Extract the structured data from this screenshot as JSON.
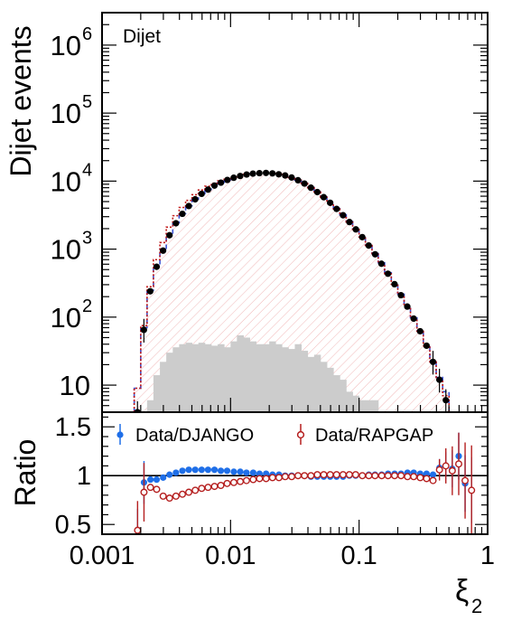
{
  "chart_data": [
    {
      "type": "step",
      "panel": "main",
      "label": "Dijet",
      "ylabel": "Dijet events",
      "yscale": "log",
      "ylim": [
        4,
        3000000
      ],
      "xscale": "log",
      "xlim": [
        0.001,
        1
      ],
      "ytick_labels": [
        {
          "base": "10",
          "exp": "6",
          "value": 1000000
        },
        {
          "base": "10",
          "exp": "5",
          "value": 100000
        },
        {
          "base": "10",
          "exp": "4",
          "value": 10000
        },
        {
          "base": "10",
          "exp": "3",
          "value": 1000
        },
        {
          "base": "10",
          "exp": "2",
          "value": 100
        },
        {
          "base": "10",
          "exp": "",
          "value": 10
        }
      ],
      "bin_edges": [
        0.00178,
        0.002,
        0.00224,
        0.00251,
        0.00282,
        0.00316,
        0.00355,
        0.00398,
        0.00447,
        0.00501,
        0.00562,
        0.00631,
        0.00708,
        0.00794,
        0.00891,
        0.01,
        0.0112,
        0.0126,
        0.0141,
        0.0158,
        0.0178,
        0.02,
        0.0224,
        0.0251,
        0.0282,
        0.0316,
        0.0355,
        0.0398,
        0.0447,
        0.0501,
        0.0562,
        0.0631,
        0.0708,
        0.0794,
        0.0891,
        0.1,
        0.112,
        0.126,
        0.141,
        0.158,
        0.178,
        0.2,
        0.224,
        0.251,
        0.282,
        0.316,
        0.355,
        0.398,
        0.447,
        0.501,
        0.562,
        0.631,
        0.708,
        0.794
      ],
      "series": [
        {
          "name": "",
          "role": "data",
          "style": "black-points",
          "values": [
            4,
            65,
            240,
            550,
            950,
            1600,
            2400,
            3300,
            4300,
            5400,
            6500,
            7500,
            8600,
            9500,
            10400,
            11200,
            11900,
            12500,
            12900,
            13100,
            13200,
            13000,
            12600,
            12100,
            11300,
            10300,
            9200,
            8000,
            6900,
            5800,
            4800,
            3900,
            3150,
            2500,
            1950,
            1500,
            1130,
            840,
            610,
            435,
            305,
            210,
            143,
            95,
            62,
            38,
            22,
            12,
            6
          ]
        },
        {
          "name": "",
          "role": "mc",
          "style": "blue-dashed-step",
          "values": [
            9,
            70,
            250,
            580,
            1000,
            1650,
            2450,
            3350,
            4350,
            5450,
            6550,
            7550,
            8650,
            9550,
            10450,
            11250,
            11950,
            12550,
            12950,
            13150,
            13250,
            13050,
            12650,
            12150,
            11350,
            10350,
            9250,
            8050,
            6950,
            5850,
            4850,
            3950,
            3200,
            2550,
            2000,
            1550,
            1160,
            860,
            630,
            450,
            315,
            218,
            148,
            98,
            64,
            40,
            23,
            13,
            8
          ]
        },
        {
          "name": "",
          "role": "mc",
          "style": "red-dotted-step",
          "values": [
            9,
            75,
            280,
            700,
            1250,
            2100,
            3100,
            4100,
            5200,
            6300,
            7400,
            8400,
            9300,
            10100,
            10900,
            11500,
            12100,
            12600,
            12900,
            13100,
            13200,
            13000,
            12600,
            12100,
            11300,
            10300,
            9200,
            8000,
            6900,
            5800,
            4800,
            3900,
            3150,
            2500,
            1950,
            1500,
            1130,
            840,
            610,
            435,
            305,
            210,
            143,
            95,
            62,
            38,
            22,
            12,
            7
          ]
        },
        {
          "name": "",
          "role": "background",
          "style": "grey-filled",
          "values": [
            0,
            0,
            6,
            14,
            22,
            30,
            36,
            40,
            42,
            40,
            42,
            40,
            38,
            40,
            36,
            44,
            54,
            50,
            44,
            40,
            40,
            44,
            40,
            36,
            34,
            40,
            32,
            26,
            28,
            22,
            18,
            14,
            12,
            8,
            7,
            6,
            6,
            6,
            0,
            0,
            0,
            0,
            0,
            0,
            0,
            0,
            0,
            0,
            0
          ]
        }
      ]
    },
    {
      "type": "scatter",
      "panel": "ratio",
      "ylabel": "Ratio",
      "xlabel_symbol": "ξ",
      "xlabel_subscript": "2",
      "xscale": "log",
      "xlim": [
        0.001,
        1
      ],
      "ylim": [
        0.4,
        1.65
      ],
      "ytick_labels": [
        {
          "label": "1.5",
          "value": 1.5
        },
        {
          "label": "1",
          "value": 1.0
        },
        {
          "label": "0.5",
          "value": 0.5
        }
      ],
      "xtick_labels": [
        {
          "label": "0.001",
          "value": 0.001
        },
        {
          "label": "0.01",
          "value": 0.01
        },
        {
          "label": "0.1",
          "value": 0.1
        },
        {
          "label": "1",
          "value": 1
        }
      ],
      "reference_line": 1.0,
      "series": [
        {
          "name": "Data/DJANGO",
          "color": "#1f6fe8",
          "marker": "filled",
          "x": [
            0.00189,
            0.00212,
            0.00238,
            0.00266,
            0.00299,
            0.00335,
            0.00376,
            0.00422,
            0.00473,
            0.00531,
            0.00596,
            0.00668,
            0.0075,
            0.0084,
            0.0094,
            0.0106,
            0.0119,
            0.0133,
            0.015,
            0.0168,
            0.0189,
            0.0212,
            0.0238,
            0.0266,
            0.0299,
            0.0335,
            0.0376,
            0.0422,
            0.0473,
            0.0531,
            0.0596,
            0.0668,
            0.075,
            0.084,
            0.094,
            0.106,
            0.119,
            0.133,
            0.15,
            0.168,
            0.189,
            0.212,
            0.238,
            0.266,
            0.299,
            0.335,
            0.376,
            0.422,
            0.473,
            0.531,
            0.596,
            0.668,
            0.75
          ],
          "values": [
            0.44,
            0.93,
            0.96,
            0.96,
            0.98,
            1.01,
            1.03,
            1.05,
            1.06,
            1.06,
            1.06,
            1.06,
            1.06,
            1.05,
            1.05,
            1.04,
            1.04,
            1.03,
            1.03,
            1.02,
            1.02,
            1.01,
            1.01,
            1.0,
            1.0,
            1.0,
            1.0,
            0.99,
            0.99,
            0.99,
            0.99,
            0.99,
            0.99,
            1.0,
            1.0,
            1.0,
            1.01,
            1.01,
            1.01,
            1.02,
            1.02,
            1.02,
            1.03,
            1.03,
            1.02,
            1.02,
            1.01,
            1.08,
            1.1,
            1.07,
            1.2,
            0.92,
            0.85
          ]
        },
        {
          "name": "Data/RAPGAP",
          "color": "#b51f1f",
          "marker": "open",
          "x": [
            0.00189,
            0.00212,
            0.00238,
            0.00266,
            0.00299,
            0.00335,
            0.00376,
            0.00422,
            0.00473,
            0.00531,
            0.00596,
            0.00668,
            0.0075,
            0.0084,
            0.0094,
            0.0106,
            0.0119,
            0.0133,
            0.015,
            0.0168,
            0.0189,
            0.0212,
            0.0238,
            0.0266,
            0.0299,
            0.0335,
            0.0376,
            0.0422,
            0.0473,
            0.0531,
            0.0596,
            0.0668,
            0.075,
            0.084,
            0.094,
            0.106,
            0.119,
            0.133,
            0.15,
            0.168,
            0.189,
            0.212,
            0.238,
            0.266,
            0.299,
            0.335,
            0.376,
            0.422,
            0.473,
            0.531,
            0.596,
            0.668,
            0.75
          ],
          "values": [
            0.44,
            0.83,
            0.88,
            0.86,
            0.79,
            0.77,
            0.79,
            0.81,
            0.83,
            0.85,
            0.87,
            0.88,
            0.89,
            0.9,
            0.92,
            0.93,
            0.94,
            0.95,
            0.96,
            0.97,
            0.97,
            0.98,
            0.98,
            0.99,
            0.99,
            1.0,
            1.0,
            1.0,
            1.01,
            1.01,
            1.01,
            1.01,
            1.01,
            1.01,
            1.01,
            1.0,
            1.0,
            1.0,
            1.0,
            1.0,
            1.0,
            1.0,
            0.99,
            0.99,
            0.98,
            0.97,
            0.95,
            1.06,
            1.1,
            1.05,
            1.12,
            0.95,
            0.85
          ]
        }
      ]
    }
  ]
}
